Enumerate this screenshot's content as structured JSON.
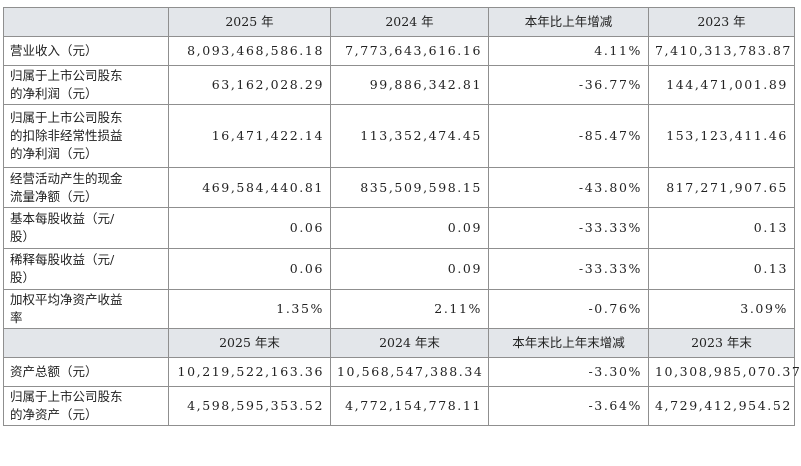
{
  "table": {
    "header1": [
      "",
      "2025 年",
      "2024 年",
      "本年比上年增减",
      "2023 年"
    ],
    "rows1": [
      {
        "label": [
          "营业收入（元）"
        ],
        "values": [
          "8,093,468,586.18",
          "7,773,643,616.16",
          "4.11%",
          "7,410,313,783.87"
        ]
      },
      {
        "label": [
          "归属于上市公司股东",
          "的净利润（元）"
        ],
        "values": [
          "63,162,028.29",
          "99,886,342.81",
          "-36.77%",
          "144,471,001.89"
        ]
      },
      {
        "label": [
          "归属于上市公司股东",
          "的扣除非经常性损益",
          "的净利润（元）"
        ],
        "values": [
          "16,471,422.14",
          "113,352,474.45",
          "-85.47%",
          "153,123,411.46"
        ]
      },
      {
        "label": [
          "经营活动产生的现金",
          "流量净额（元）"
        ],
        "values": [
          "469,584,440.81",
          "835,509,598.15",
          "-43.80%",
          "817,271,907.65"
        ]
      },
      {
        "label": [
          "基本每股收益（元/",
          "股）"
        ],
        "values": [
          "0.06",
          "0.09",
          "-33.33%",
          "0.13"
        ]
      },
      {
        "label": [
          "稀释每股收益（元/",
          "股）"
        ],
        "values": [
          "0.06",
          "0.09",
          "-33.33%",
          "0.13"
        ]
      },
      {
        "label": [
          "加权平均净资产收益",
          "率"
        ],
        "values": [
          "1.35%",
          "2.11%",
          "-0.76%",
          "3.09%"
        ]
      }
    ],
    "header2": [
      "",
      "2025 年末",
      "2024 年末",
      "本年末比上年末增减",
      "2023 年末"
    ],
    "rows2": [
      {
        "label": [
          "资产总额（元）"
        ],
        "values": [
          "10,219,522,163.36",
          "10,568,547,388.34",
          "-3.30%",
          "10,308,985,070.37"
        ]
      },
      {
        "label": [
          "归属于上市公司股东",
          "的净资产（元）"
        ],
        "values": [
          "4,598,595,353.52",
          "4,772,154,778.11",
          "-3.64%",
          "4,729,412,954.52"
        ]
      }
    ]
  }
}
